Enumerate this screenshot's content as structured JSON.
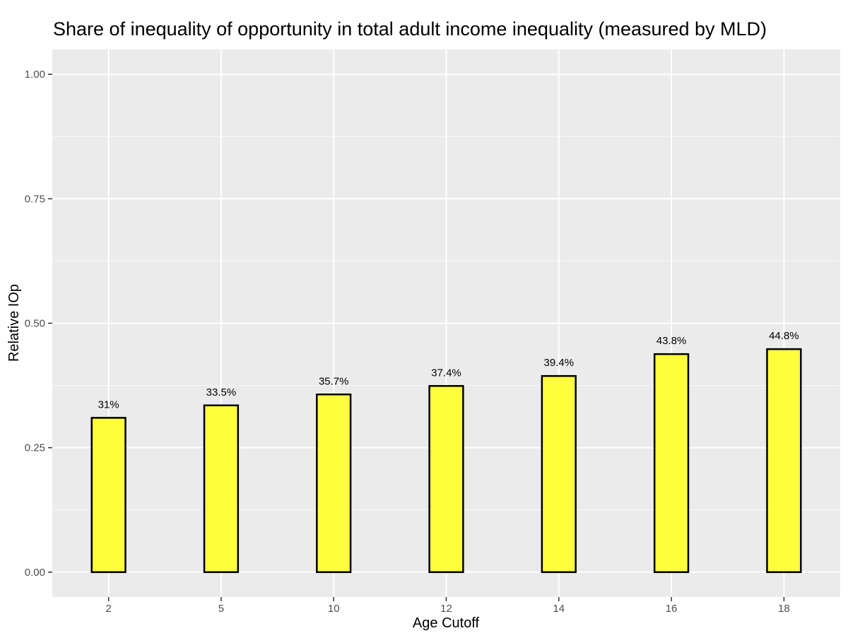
{
  "chart_data": {
    "type": "bar",
    "title": "Share of inequality of opportunity in total adult income inequality (measured by MLD)",
    "xlabel": "Age Cutoff",
    "ylabel": "Relative IOp",
    "categories": [
      "2",
      "5",
      "10",
      "12",
      "14",
      "16",
      "18"
    ],
    "values": [
      0.31,
      0.335,
      0.357,
      0.374,
      0.394,
      0.438,
      0.448
    ],
    "data_labels": [
      "31%",
      "33.5%",
      "35.7%",
      "37.4%",
      "39.4%",
      "43.8%",
      "44.8%"
    ],
    "ylim": [
      -0.05,
      1.05
    ],
    "yticks": [
      0,
      0.25,
      0.5,
      0.75,
      1.0
    ],
    "ytick_labels": [
      "0.00",
      "0.25",
      "0.50",
      "0.75",
      "1.00"
    ],
    "grid": true,
    "legend": "none",
    "colors": {
      "bar_fill": "#ffff33",
      "bar_stroke": "#000000",
      "panel_background": "#ebebeb",
      "grid_major": "#ffffff"
    }
  }
}
